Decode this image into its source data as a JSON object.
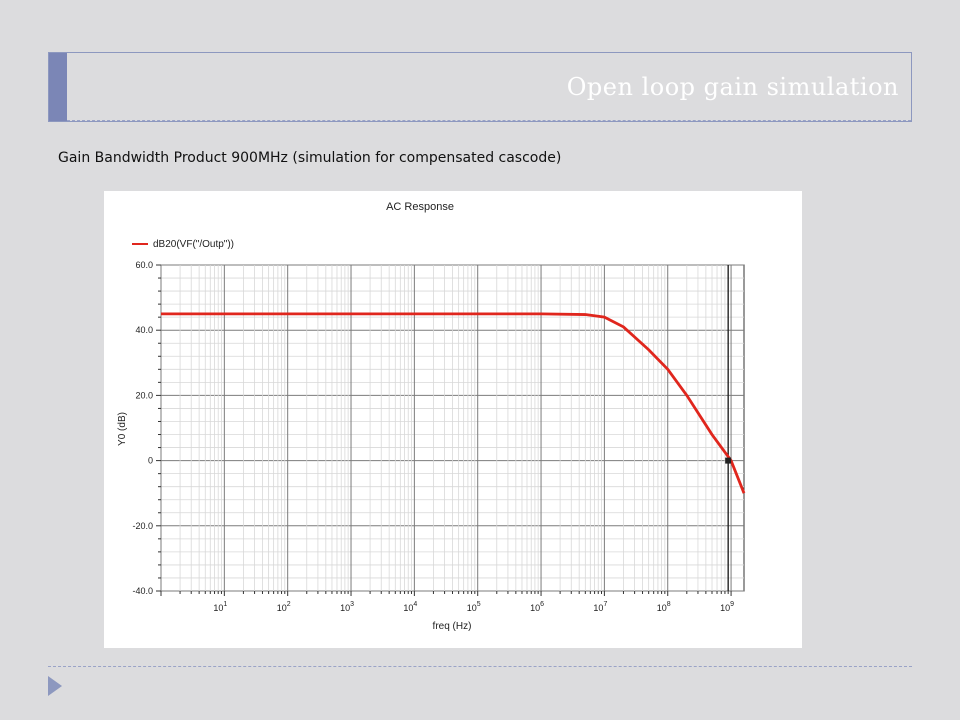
{
  "slide": {
    "title": "Open loop gain simulation",
    "subtitle": "Gain Bandwidth Product 900MHz (simulation for compensated cascode)"
  },
  "chart_data": {
    "type": "line",
    "title": "AC Response",
    "xlabel": "freq (Hz)",
    "ylabel": "Y0 (dB)",
    "x_scale": "log",
    "xlim": [
      1,
      1600000000.0
    ],
    "ylim": [
      -40,
      60
    ],
    "y_ticks": [
      60,
      40,
      20,
      0,
      -20,
      -40
    ],
    "y_tick_labels": [
      "60.0",
      "40.0",
      "20.0",
      "0",
      "-20.0",
      "-40.0"
    ],
    "x_tick_exponents": [
      1,
      2,
      3,
      4,
      5,
      6,
      7,
      8,
      9
    ],
    "x_tick_base": "10",
    "grid": true,
    "legend_position": "top-left",
    "series": [
      {
        "name": "dB20(VF(\"/Outp\"))",
        "color": "#e0261d",
        "x": [
          1,
          10,
          100,
          1000,
          10000,
          100000,
          1000000,
          5000000,
          10000000,
          20000000,
          50000000,
          100000000,
          200000000,
          500000000,
          1000000000,
          1600000000
        ],
        "y": [
          45,
          45,
          45,
          45,
          45,
          45,
          45,
          44.8,
          44,
          41,
          34,
          28,
          20,
          8,
          0,
          -10
        ]
      }
    ],
    "marker": {
      "x": 900000000,
      "y": 0,
      "color": "#222222"
    },
    "cursor_line_x": 900000000
  }
}
